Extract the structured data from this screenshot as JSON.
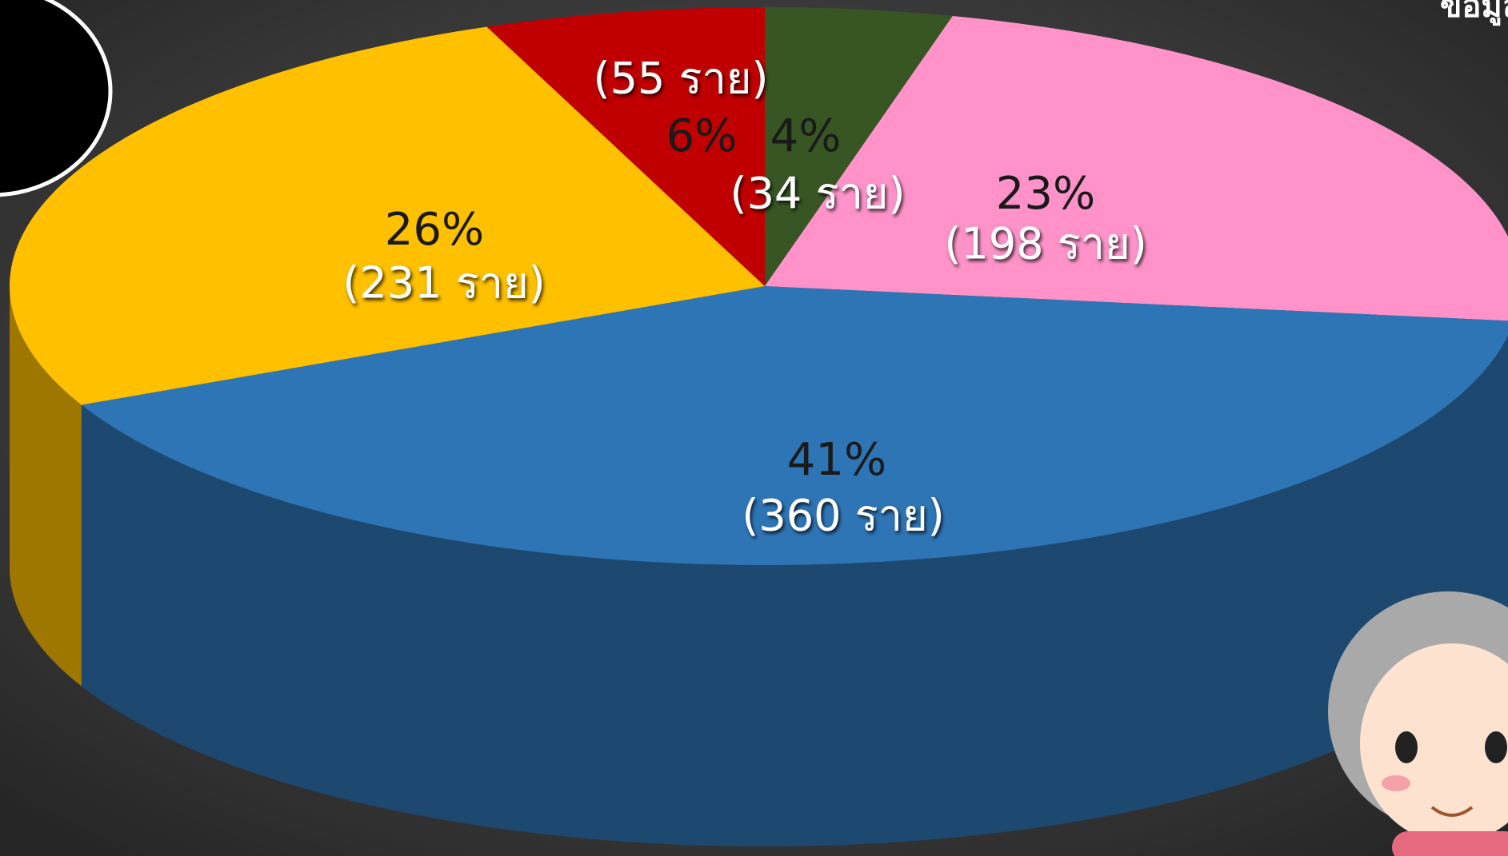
{
  "chart_data": {
    "type": "pie",
    "header_text": "ข้อมูล ณ",
    "values": [
      4,
      23,
      41,
      26,
      6
    ],
    "value_labels": [
      "4%",
      "23%",
      "41%",
      "26%",
      "6%"
    ],
    "count_labels": [
      "(34 ราย)",
      "(198 ราย)",
      "(360 ราย)",
      "(231 ราย)",
      "(55 ราย)"
    ],
    "colors": [
      "#375623",
      "#ff93c9",
      "#2e75b6",
      "#ffc000",
      "#c00000"
    ]
  }
}
